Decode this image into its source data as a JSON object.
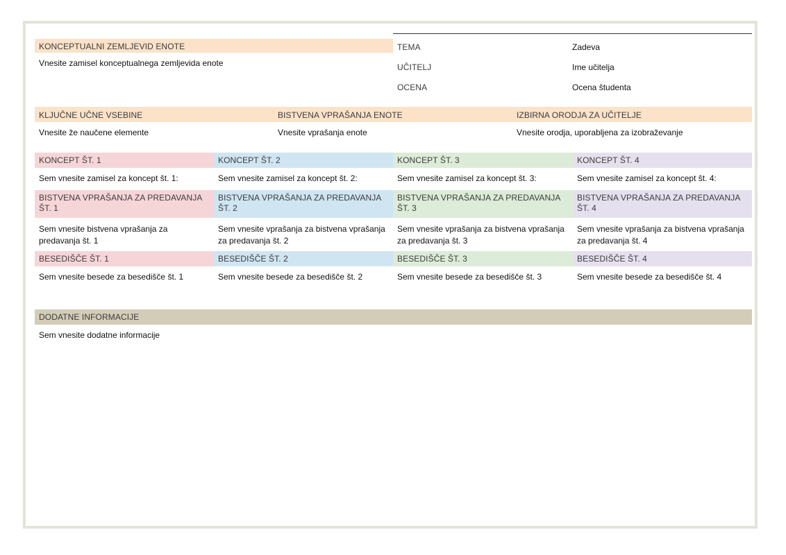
{
  "concept_map": {
    "heading": "KONCEPTUALNI ZEMLJEVID ENOTE",
    "text": "Vnesite zamisel konceptualnega zemljevida enote"
  },
  "info": {
    "rows": [
      {
        "label": "TEMA",
        "value": "Zadeva"
      },
      {
        "label": "UČITELJ",
        "value": "Ime učitelja"
      },
      {
        "label": "OCENA",
        "value": "Ocena študenta"
      }
    ]
  },
  "sections": [
    {
      "heading": "KLJUČNE UČNE VSEBINE",
      "text": "Vnesite že naučene elemente"
    },
    {
      "heading": "BISTVENA VPRAŠANJA ENOTE",
      "text": "Vnesite vprašanja enote"
    },
    {
      "heading": "IZBIRNA ORODJA ZA UČITELJE",
      "text": "Vnesite orodja, uporabljena za izobraževanje"
    }
  ],
  "concepts": [
    {
      "heading": "KONCEPT ŠT. 1",
      "text": "Sem vnesite zamisel za koncept št. 1:",
      "questions_heading": "BISTVENA VPRAŠANJA ZA PREDAVANJA ŠT. 1",
      "questions_text": "Sem vnesite bistvena vprašanja za predavanja št. 1",
      "vocab_heading": "BESEDIŠČE ŠT. 1",
      "vocab_text": "Sem vnesite besede za besedišče št. 1",
      "color": "#f6d5d9"
    },
    {
      "heading": "KONCEPT ŠT. 2",
      "text": "Sem vnesite zamisel za koncept št. 2:",
      "questions_heading": "BISTVENA VPRAŠANJA ZA PREDAVANJA ŠT. 2",
      "questions_text": "Sem vnesite vprašanja za bistvena vprašanja za predavanja št. 2",
      "vocab_heading": "BESEDIŠČE ŠT. 2",
      "vocab_text": "Sem vnesite besede za besedišče št. 2",
      "color": "#cfe5f2"
    },
    {
      "heading": "KONCEPT ŠT. 3",
      "text": "Sem vnesite zamisel za koncept št. 3:",
      "questions_heading": "BISTVENA VPRAŠANJA ZA PREDAVANJA ŠT. 3",
      "questions_text": "Sem vnesite vprašanja za bistvena vprašanja za predavanja št. 3",
      "vocab_heading": "BESEDIŠČE ŠT. 3",
      "vocab_text": "Sem vnesite besede za besedišče št. 3",
      "color": "#dcecd8"
    },
    {
      "heading": "KONCEPT ŠT. 4",
      "text": "Sem vnesite zamisel za koncept št. 4:",
      "questions_heading": "BISTVENA VPRAŠANJA ZA PREDAVANJA ŠT. 4",
      "questions_text": "Sem vnesite vprašanja za bistvena vprašanja za predavanja št. 4",
      "vocab_heading": "BESEDIŠČE ŠT. 4",
      "vocab_text": "Sem vnesite besede za besedišče št. 4",
      "color": "#e5e0ee"
    }
  ],
  "additional": {
    "heading": "DODATNE INFORMACIJE",
    "text": "Sem vnesite dodatne informacije"
  }
}
